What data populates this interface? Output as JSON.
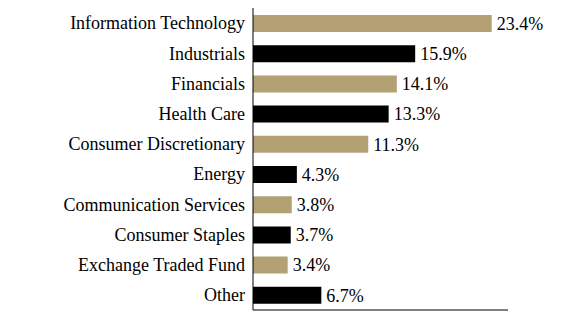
{
  "chart_data": {
    "type": "bar",
    "orientation": "horizontal",
    "categories": [
      "Information Technology",
      "Industrials",
      "Financials",
      "Health Care",
      "Consumer Discretionary",
      "Energy",
      "Communication Services",
      "Consumer Staples",
      "Exchange Traded Fund",
      "Other"
    ],
    "values": [
      23.4,
      15.9,
      14.1,
      13.3,
      11.3,
      4.3,
      3.8,
      3.7,
      3.4,
      6.7
    ],
    "value_labels": [
      "23.4%",
      "15.9%",
      "14.1%",
      "13.3%",
      "11.3%",
      "4.3%",
      "3.8%",
      "3.7%",
      "3.4%",
      "6.7%"
    ],
    "colors": [
      "#b3a173",
      "#000000",
      "#b3a173",
      "#000000",
      "#b3a173",
      "#000000",
      "#b3a173",
      "#000000",
      "#b3a173",
      "#000000"
    ],
    "xlim": [
      0,
      25
    ],
    "xticks": [],
    "grid": false,
    "data_labels": true,
    "tick_labels": "y"
  }
}
